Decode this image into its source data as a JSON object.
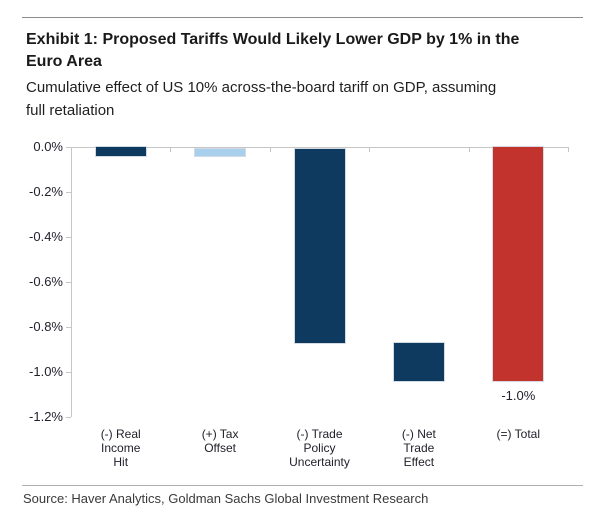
{
  "header": {
    "title_lines": [
      "Exhibit 1: Proposed Tariffs Would Likely Lower GDP by 1% in the",
      "Euro Area"
    ],
    "subtitle_lines": [
      "Cumulative effect of US 10% across-the-board tariff on GDP, assuming",
      "full retaliation"
    ]
  },
  "footer": {
    "source": "Source: Haver Analytics, Goldman Sachs Global Investment Research"
  },
  "colors": {
    "navy": "#0e3a5f",
    "light_blue": "#a8cfec",
    "red": "#c2332d",
    "axis": "#c6c6c6",
    "tick_text": "#21212b",
    "title_text": "#1a1a1a",
    "source_text": "#3a3a3a",
    "rule_top": "#8c8c8c",
    "rule_bottom": "#b0b0b0"
  },
  "chart_data": {
    "type": "bar",
    "subtype": "waterfall",
    "title": "Exhibit 1: Proposed Tariffs Would Likely Lower GDP by 1% in the Euro Area",
    "subtitle": "Cumulative effect of US 10% across-the-board tariff on GDP, assuming full retaliation",
    "unit": "% of GDP",
    "ylim": [
      -1.2,
      0.0
    ],
    "ytick_step": 0.2,
    "grid": false,
    "legend": false,
    "y_ticks": [
      "0.0%",
      "-0.2%",
      "-0.4%",
      "-0.6%",
      "-0.8%",
      "-1.0%",
      "-1.2%"
    ],
    "categories": [
      "(-) Real Income Hit",
      "(+) Tax Offset",
      "(-) Trade Policy Uncertainty",
      "(-) Net Trade Effect",
      "(=) Total"
    ],
    "category_label_lines": [
      [
        "(-) Real",
        "Income",
        "Hit"
      ],
      [
        "(+) Tax",
        "Offset"
      ],
      [
        "(-) Trade",
        "Policy",
        "Uncertainty"
      ],
      [
        "(-) Net",
        "Trade",
        "Effect"
      ],
      [
        "(=) Total"
      ]
    ],
    "bars": [
      {
        "id": "real-income-hit",
        "label": "(-) Real Income Hit",
        "value": -0.04,
        "from": 0.0,
        "to": -0.04,
        "color": "#0e3a5f"
      },
      {
        "id": "tax-offset",
        "label": "(+) Tax Offset",
        "value": 0.03,
        "from": -0.04,
        "to": -0.01,
        "color": "#a8cfec"
      },
      {
        "id": "trade-policy-uncertainty",
        "label": "(-) Trade Policy Uncertainty",
        "value": -0.86,
        "from": -0.01,
        "to": -0.87,
        "color": "#0e3a5f"
      },
      {
        "id": "net-trade-effect",
        "label": "(-) Net Trade Effect",
        "value": -0.17,
        "from": -0.87,
        "to": -1.04,
        "color": "#0e3a5f"
      },
      {
        "id": "total",
        "label": "(=) Total",
        "value": -1.04,
        "from": 0.0,
        "to": -1.04,
        "color": "#c2332d",
        "data_label": "-1.0%"
      }
    ]
  }
}
